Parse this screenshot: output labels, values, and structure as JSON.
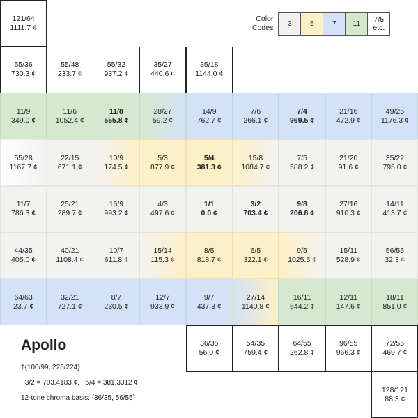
{
  "title": "Apollo",
  "notes": [
    "†{100/99, 225/224}",
    "~3/2 = 703.4183 ¢, ~5/4 = 381.3312 ¢",
    "12-tone chroma basis: {36/35, 56/55}"
  ],
  "legend": {
    "label": [
      "Color",
      "Codes"
    ],
    "items": [
      {
        "label": "3",
        "color": "#f2f2f0"
      },
      {
        "label": "5",
        "color": "#fdf0c6"
      },
      {
        "label": "7",
        "color": "#d3e2f7"
      },
      {
        "label": "11",
        "color": "#d5e9cf"
      },
      {
        "label": "7/5 etc.",
        "color": "#ffffff"
      }
    ]
  },
  "rows": [
    [
      {
        "ratio": "121/64",
        "cents": "1111.7 ¢"
      },
      null,
      null,
      null,
      null,
      null,
      null,
      null,
      null
    ],
    [
      {
        "ratio": "55/36",
        "cents": "730.3 ¢"
      },
      {
        "ratio": "55/48",
        "cents": "233.7 ¢"
      },
      {
        "ratio": "55/32",
        "cents": "937.2 ¢"
      },
      {
        "ratio": "35/27",
        "cents": "440.6 ¢"
      },
      {
        "ratio": "35/18",
        "cents": "1144.0 ¢"
      },
      null,
      null,
      null,
      null
    ],
    [
      {
        "ratio": "11/9",
        "cents": "349.0 ¢",
        "tint": [
          3
        ]
      },
      {
        "ratio": "11/6",
        "cents": "1052.4 ¢",
        "tint": [
          3
        ]
      },
      {
        "ratio": "11/8",
        "cents": "555.8 ¢",
        "bold": true,
        "tint": [
          3
        ]
      },
      {
        "ratio": "28/27",
        "cents": "59.2 ¢",
        "tint": [
          3,
          2
        ]
      },
      {
        "ratio": "14/9",
        "cents": "762.7 ¢",
        "tint": [
          2
        ]
      },
      {
        "ratio": "7/6",
        "cents": "266.1 ¢",
        "tint": [
          2
        ]
      },
      {
        "ratio": "7/4",
        "cents": "969.5 ¢",
        "bold": true,
        "tint": [
          2
        ]
      },
      {
        "ratio": "21/16",
        "cents": "472.9 ¢",
        "tint": [
          2
        ]
      },
      {
        "ratio": "49/25",
        "cents": "1176.3 ¢",
        "tint": [
          2
        ]
      }
    ],
    [
      {
        "ratio": "55/28",
        "cents": "1167.7 ¢",
        "tint": [
          4,
          0
        ]
      },
      {
        "ratio": "22/15",
        "cents": "671.1 ¢",
        "tint": [
          0
        ]
      },
      {
        "ratio": "10/9",
        "cents": "174.5 ¢",
        "tint": [
          0,
          1
        ]
      },
      {
        "ratio": "5/3",
        "cents": "877.9 ¢",
        "tint": [
          1
        ]
      },
      {
        "ratio": "5/4",
        "cents": "381.3 ¢",
        "bold": true,
        "tint": [
          1
        ]
      },
      {
        "ratio": "15/8",
        "cents": "1084.7 ¢",
        "tint": [
          1,
          0
        ]
      },
      {
        "ratio": "7/5",
        "cents": "588.2 ¢",
        "tint": [
          0
        ]
      },
      {
        "ratio": "21/20",
        "cents": "91.6 ¢",
        "tint": [
          0
        ]
      },
      {
        "ratio": "35/22",
        "cents": "795.0 ¢",
        "tint": [
          0
        ]
      }
    ],
    [
      {
        "ratio": "11/7",
        "cents": "786.3 ¢",
        "tint": [
          0
        ]
      },
      {
        "ratio": "25/21",
        "cents": "289.7 ¢",
        "tint": [
          0
        ]
      },
      {
        "ratio": "16/9",
        "cents": "993.2 ¢",
        "tint": [
          0
        ]
      },
      {
        "ratio": "4/3",
        "cents": "497.6 ¢",
        "tint": [
          0
        ]
      },
      {
        "ratio": "1/1",
        "cents": "0.0 ¢",
        "bold": true,
        "tint": [
          0
        ]
      },
      {
        "ratio": "3/2",
        "cents": "703.4 ¢",
        "bold": true,
        "tint": [
          0
        ]
      },
      {
        "ratio": "9/8",
        "cents": "206.8 ¢",
        "bold": true,
        "tint": [
          0
        ]
      },
      {
        "ratio": "27/16",
        "cents": "910.3 ¢",
        "tint": [
          0
        ]
      },
      {
        "ratio": "14/11",
        "cents": "413.7 ¢",
        "tint": [
          0
        ]
      }
    ],
    [
      {
        "ratio": "44/35",
        "cents": "405.0 ¢",
        "tint": [
          0
        ]
      },
      {
        "ratio": "40/21",
        "cents": "1108.4 ¢",
        "tint": [
          0
        ]
      },
      {
        "ratio": "10/7",
        "cents": "611.8 ¢",
        "tint": [
          0
        ]
      },
      {
        "ratio": "15/14",
        "cents": "115.3 ¢",
        "tint": [
          0,
          1
        ]
      },
      {
        "ratio": "8/5",
        "cents": "818.7 ¢",
        "tint": [
          1
        ]
      },
      {
        "ratio": "6/5",
        "cents": "322.1 ¢",
        "tint": [
          1
        ]
      },
      {
        "ratio": "9/5",
        "cents": "1025.5 ¢",
        "tint": [
          1,
          0
        ]
      },
      {
        "ratio": "15/11",
        "cents": "528.9 ¢",
        "tint": [
          0
        ]
      },
      {
        "ratio": "56/55",
        "cents": "32.3 ¢",
        "tint": [
          0
        ]
      }
    ],
    [
      {
        "ratio": "64/63",
        "cents": "23.7 ¢",
        "tint": [
          2
        ]
      },
      {
        "ratio": "32/21",
        "cents": "727.1 ¢",
        "tint": [
          2
        ]
      },
      {
        "ratio": "8/7",
        "cents": "230.5 ¢",
        "tint": [
          2
        ]
      },
      {
        "ratio": "12/7",
        "cents": "933.9 ¢",
        "tint": [
          2
        ]
      },
      {
        "ratio": "9/7",
        "cents": "437.3 ¢",
        "tint": [
          2
        ]
      },
      {
        "ratio": "27/14",
        "cents": "1140.8 ¢",
        "tint": [
          2,
          1
        ]
      },
      {
        "ratio": "16/11",
        "cents": "644.2 ¢",
        "tint": [
          3
        ]
      },
      {
        "ratio": "12/11",
        "cents": "147.6 ¢",
        "tint": [
          3
        ]
      },
      {
        "ratio": "18/11",
        "cents": "851.0 ¢",
        "tint": [
          3
        ]
      }
    ],
    [
      null,
      null,
      null,
      null,
      {
        "ratio": "36/35",
        "cents": "56.0 ¢"
      },
      {
        "ratio": "54/35",
        "cents": "759.4 ¢"
      },
      {
        "ratio": "64/55",
        "cents": "262.8 ¢"
      },
      {
        "ratio": "96/55",
        "cents": "966.3 ¢"
      },
      {
        "ratio": "72/55",
        "cents": "469.7 ¢"
      }
    ],
    [
      null,
      null,
      null,
      null,
      null,
      null,
      null,
      null,
      {
        "ratio": "128/121",
        "cents": "88.3 ¢"
      }
    ]
  ]
}
